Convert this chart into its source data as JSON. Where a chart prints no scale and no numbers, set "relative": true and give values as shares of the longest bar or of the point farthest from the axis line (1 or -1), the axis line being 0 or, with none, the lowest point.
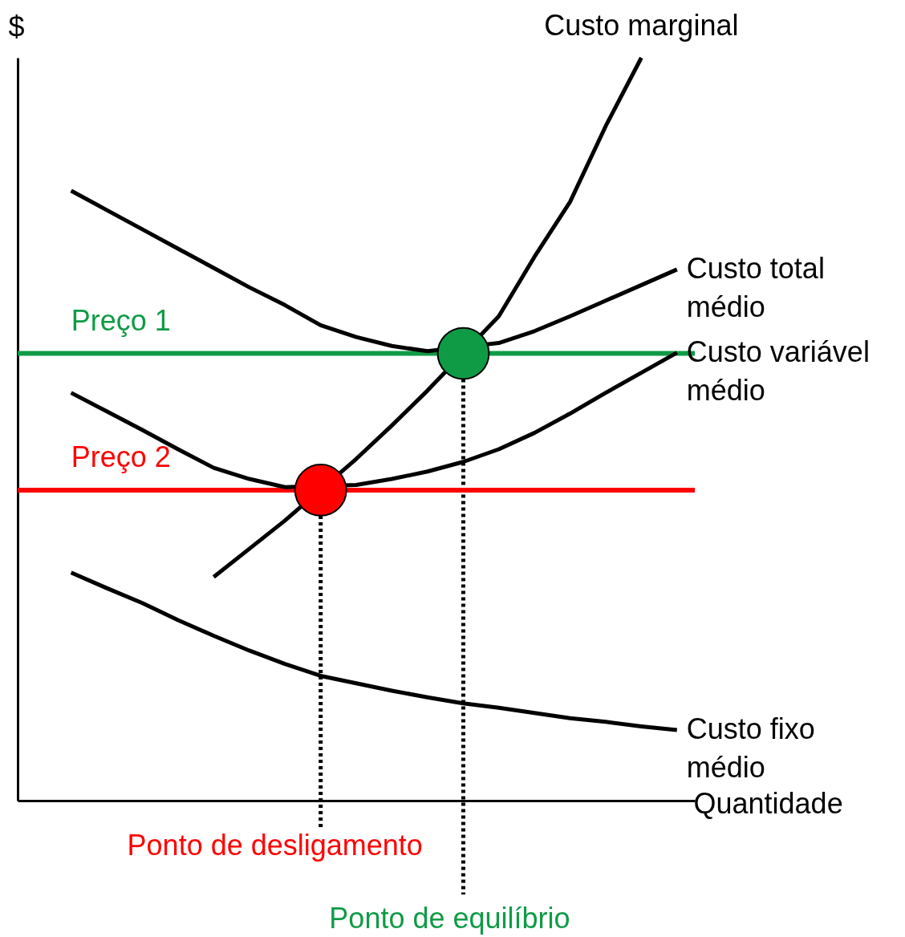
{
  "chart_data": {
    "type": "line",
    "relative": true,
    "ylabel": "$",
    "xlabel": "Quantidade",
    "grid": false,
    "line_style": "solid",
    "marker": "none",
    "categories": [
      null,
      null,
      null,
      null,
      null,
      null,
      null,
      null,
      null,
      null,
      null,
      null,
      null,
      null,
      null,
      null,
      null,
      null
    ],
    "series": [
      {
        "name": "Custo marginal",
        "color": "#000000",
        "values": [
          null,
          null,
          null,
          null,
          0.301,
          0.339,
          0.377,
          null,
          0.46,
          0.505,
          0.552,
          null,
          0.652,
          0.732,
          0.806,
          0.908,
          1.0,
          null
        ]
      },
      {
        "name": "Custo total médio",
        "color": "#000000",
        "values": [
          0.821,
          0.795,
          0.769,
          0.743,
          0.717,
          0.691,
          0.667,
          0.64,
          0.624,
          0.612,
          0.605,
          null,
          0.616,
          0.632,
          0.652,
          0.673,
          0.694,
          0.715
        ]
      },
      {
        "name": "Custo variável médio",
        "color": "#000000",
        "values": [
          0.549,
          0.524,
          0.499,
          0.473,
          0.448,
          0.433,
          0.422,
          null,
          0.425,
          0.433,
          0.443,
          0.456,
          0.473,
          0.495,
          0.521,
          0.549,
          0.576,
          0.603
        ]
      },
      {
        "name": "Custo fixo médio",
        "color": "#000000",
        "values": [
          0.307,
          0.286,
          0.266,
          0.243,
          0.222,
          0.202,
          0.184,
          0.168,
          0.158,
          0.148,
          0.139,
          0.131,
          0.125,
          0.118,
          0.111,
          0.106,
          0.1,
          0.095
        ]
      }
    ],
    "ref_lines": [
      {
        "axis": "y",
        "value": 0.602,
        "label": "Preço 1",
        "color": "#0f9b46"
      },
      {
        "axis": "y",
        "value": 0.418,
        "label": "Preço 2",
        "color": "#ff0000"
      }
    ],
    "annotations": [
      "Ponto de desligamento",
      "Ponto de equilíbrio"
    ]
  }
}
